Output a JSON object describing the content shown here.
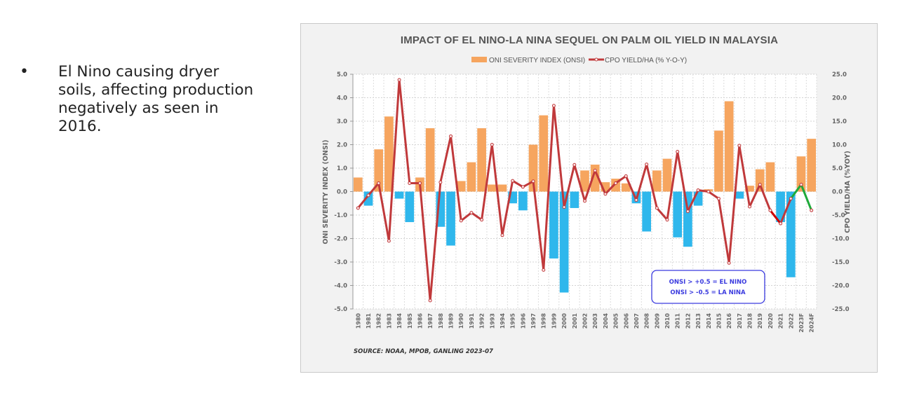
{
  "slide": {
    "bullet_symbol": "•",
    "bullet_text": "El Nino causing dryer soils, affecting production negatively as seen in 2016."
  },
  "chart_data": {
    "type": "bar+line",
    "title": "IMPACT OF EL NINO-LA NINA SEQUEL ON PALM OIL YIELD IN MALAYSIA",
    "legend": [
      {
        "name": "ONI SEVERITY INDEX (ONSI)",
        "color": "#f4a460"
      },
      {
        "name": "CPO YIELD/HA (% Y-O-Y)",
        "color": "#c0392b"
      }
    ],
    "legend_position": "top-center",
    "ylabel": "ONI SEVERITY INDEX (ONSI)",
    "y2label": "CPO YIELD/HA (%YOY)",
    "ylim": [
      -5.0,
      5.0
    ],
    "y2lim": [
      -25.0,
      25.0
    ],
    "yticks": [
      "5.0",
      "4.0",
      "3.0",
      "2.0",
      "1.0",
      "0.0",
      "-1.0",
      "-2.0",
      "-3.0",
      "-4.0",
      "-5.0"
    ],
    "y2ticks": [
      "25.0",
      "20.0",
      "15.0",
      "10.0",
      "5.0",
      "0.0",
      "-5.0",
      "-10.0",
      "-15.0",
      "-20.0",
      "-25.0"
    ],
    "grid": true,
    "categories": [
      "1980",
      "1981",
      "1982",
      "1983",
      "1984",
      "1985",
      "1986",
      "1987",
      "1988",
      "1989",
      "1990",
      "1991",
      "1992",
      "1993",
      "1994",
      "1995",
      "1996",
      "1997",
      "1998",
      "1999",
      "2000",
      "2001",
      "2002",
      "2003",
      "2004",
      "2005",
      "2006",
      "2007",
      "2008",
      "2009",
      "2010",
      "2011",
      "2012",
      "2013",
      "2014",
      "2015",
      "2016",
      "2017",
      "2018",
      "2019",
      "2020",
      "2021",
      "2022",
      "2023F",
      "2024F"
    ],
    "series": [
      {
        "name": "ONI SEVERITY INDEX (ONSI)",
        "type": "bar",
        "axis": "left",
        "positive_color": "#f6a55f",
        "negative_color": "#2fb7ec",
        "values": [
          0.6,
          -0.6,
          1.8,
          3.2,
          -0.3,
          -1.3,
          0.6,
          2.7,
          -1.5,
          -2.3,
          0.45,
          1.25,
          2.7,
          0.3,
          0.3,
          -0.5,
          -0.8,
          2.0,
          3.25,
          -2.85,
          -4.3,
          -0.7,
          0.9,
          1.15,
          0.4,
          0.55,
          0.35,
          -0.5,
          -1.7,
          0.9,
          1.4,
          -1.95,
          -2.35,
          -0.6,
          0.1,
          2.6,
          3.85,
          -0.3,
          0.25,
          0.95,
          1.25,
          -1.3,
          -3.65,
          1.5,
          2.25
        ]
      },
      {
        "name": "CPO YIELD/HA (% Y-O-Y)",
        "type": "line",
        "axis": "right",
        "color": "#c0393b",
        "highlight_red_segment": [
          "2020",
          "2021"
        ],
        "highlight_red_color": "#cc0000",
        "forecast_segment": [
          "2022",
          "2023F",
          "2024F"
        ],
        "forecast_color": "#1faa3a",
        "values": [
          -3.5,
          -0.8,
          1.8,
          -10.5,
          23.8,
          1.8,
          1.8,
          -23.2,
          2.0,
          11.8,
          -6.2,
          -4.5,
          -6.0,
          10.0,
          -9.3,
          2.3,
          1.0,
          2.2,
          -16.7,
          18.3,
          -3.3,
          5.7,
          -2.0,
          4.5,
          -0.5,
          1.8,
          3.3,
          -1.8,
          5.8,
          -3.5,
          -6.0,
          8.5,
          -4.2,
          0.3,
          0.0,
          -1.5,
          -15.2,
          9.8,
          -3.2,
          1.5,
          -4.0,
          -6.8,
          -1.5,
          1.5,
          -4.0
        ]
      }
    ],
    "annotation": {
      "line1": "ONSI > +0.5 = EL NINO",
      "line2": "ONSI > -0.5 = LA NINA",
      "color": "#3a3adf"
    },
    "source": "SOURCE: NOAA, MPOB, GANLING 2023-07"
  }
}
